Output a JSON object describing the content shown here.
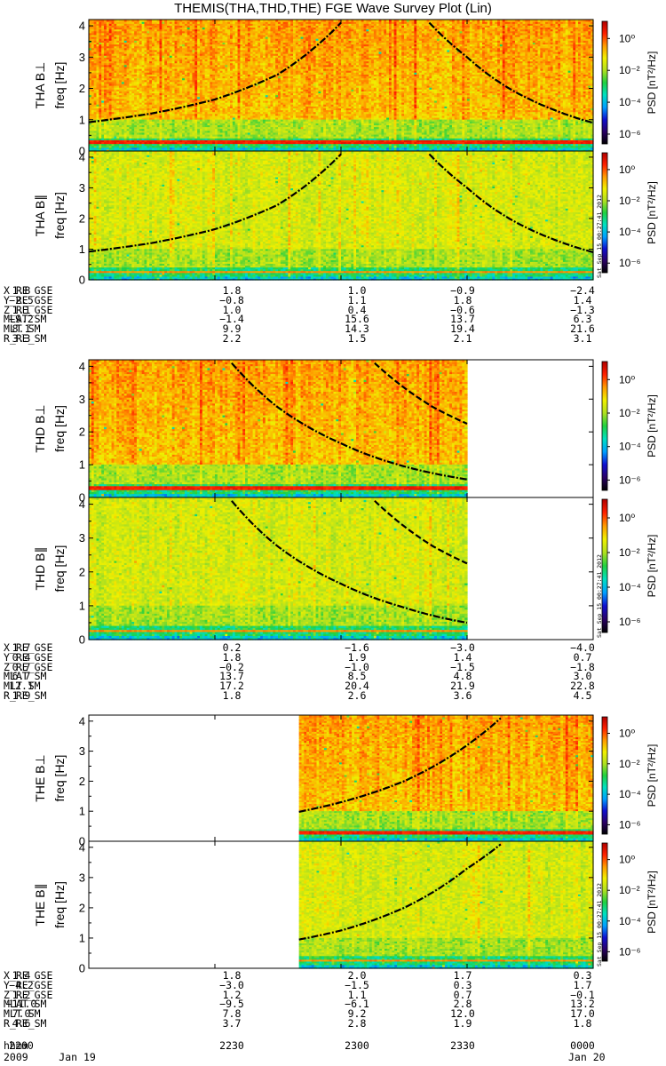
{
  "title": "THEMIS(THA,THD,THE) FGE Wave Survey Plot (Lin)",
  "colorbar": {
    "label": "PSD [nT²/Hz]",
    "tick_labels": [
      "10⁰",
      "10⁻²",
      "10⁻⁴",
      "10⁻⁶"
    ],
    "colors": [
      "#000000",
      "#2a0066",
      "#1010d0",
      "#00a0ff",
      "#00e0c0",
      "#20d040",
      "#b0e020",
      "#f0f000",
      "#ff9a00",
      "#ff2000",
      "#b00000"
    ]
  },
  "timestamp": "Sat Sep 15 00:27:41 2012",
  "time_axis": {
    "label_row": "hhmm",
    "ticks": [
      "2200",
      "2230",
      "2300",
      "2330",
      "0000"
    ],
    "date_left": "2009     Jan 19",
    "date_right": "Jan 20"
  },
  "ephem_labels": [
    "X_RE_GSE",
    "Y_RE_GSE",
    "Z_RE_GSE",
    "MLAT_SM",
    "MLT_SM",
    "R_RE_SM"
  ],
  "probes": [
    {
      "probe": "THA",
      "panels": [
        {
          "ylabel": "THA B⊥",
          "sublabel": "freq [Hz]"
        },
        {
          "ylabel": "THA B∥",
          "sublabel": "freq [Hz]"
        }
      ],
      "ephem": [
        [
          "1.8",
          "1.8",
          "1.0",
          "−0.9",
          "−2.4"
        ],
        [
          "−2.5",
          "−0.8",
          "1.1",
          "1.8",
          "1.4"
        ],
        [
          "1.1",
          "1.0",
          "0.4",
          "−0.6",
          "−1.3"
        ],
        [
          "−9.2",
          "−1.4",
          "15.6",
          "13.7",
          "6.3"
        ],
        [
          "8.1",
          "9.9",
          "14.3",
          "19.4",
          "21.6"
        ],
        [
          "3.3",
          "2.2",
          "1.5",
          "2.1",
          "3.1"
        ]
      ]
    },
    {
      "probe": "THD",
      "panels": [
        {
          "ylabel": "THD B⊥",
          "sublabel": "freq [Hz]"
        },
        {
          "ylabel": "THD B∥",
          "sublabel": "freq [Hz]"
        }
      ],
      "ephem": [
        [
          "1.7",
          "0.2",
          "−1.6",
          "−3.0",
          "−4.0"
        ],
        [
          "0.4",
          "1.8",
          "1.9",
          "1.4",
          "0.7"
        ],
        [
          "0.7",
          "−0.2",
          "−1.0",
          "−1.5",
          "−1.8"
        ],
        [
          "6.7",
          "13.7",
          "8.5",
          "4.8",
          "3.0"
        ],
        [
          "12.1",
          "17.2",
          "20.4",
          "21.9",
          "22.8"
        ],
        [
          "1.9",
          "1.8",
          "2.6",
          "3.6",
          "4.5"
        ]
      ]
    },
    {
      "probe": "THE",
      "panels": [
        {
          "ylabel": "THE B⊥",
          "sublabel": "freq [Hz]"
        },
        {
          "ylabel": "THE B∥",
          "sublabel": "freq [Hz]"
        }
      ],
      "ephem": [
        [
          "1.4",
          "1.8",
          "2.0",
          "1.7",
          "0.3"
        ],
        [
          "−4.2",
          "−3.0",
          "−1.5",
          "0.3",
          "1.7"
        ],
        [
          "1.2",
          "1.2",
          "1.1",
          "0.7",
          "−0.1"
        ],
        [
          "−11.0",
          "−9.5",
          "−6.1",
          "2.8",
          "13.2"
        ],
        [
          "7.0",
          "7.8",
          "9.2",
          "12.0",
          "17.0"
        ],
        [
          "4.6",
          "3.7",
          "2.8",
          "1.9",
          "1.8"
        ]
      ]
    }
  ],
  "chart_data": {
    "type": "heatmap",
    "title": "THEMIS(THA,THD,THE) FGE Wave Survey Plot (Lin)",
    "x_unit": "time (hhmm UT, 2009 Jan 19 2200 – Jan 20 0000)",
    "ylabel": "freq [Hz]",
    "ylim": [
      0,
      4
    ],
    "y_ticks": [
      0,
      1,
      2,
      3,
      4
    ],
    "colorbar_label": "PSD [nT²/Hz]",
    "colorbar_scale": "log",
    "colorbar_range": [
      1e-07,
      30
    ],
    "panels": [
      {
        "name": "THA B⊥",
        "data_span_min": [
          0,
          120
        ],
        "gyro_lines": [
          {
            "style": "dash-dot",
            "points": [
              [
                0,
                0.92
              ],
              [
                15,
                1.2
              ],
              [
                30,
                1.65
              ],
              [
                45,
                2.45
              ],
              [
                60,
                4.1
              ]
            ]
          },
          {
            "style": "dash-dot",
            "points": [
              [
                81,
                4.1
              ],
              [
                90,
                3.0
              ],
              [
                100,
                2.0
              ],
              [
                110,
                1.35
              ],
              [
                120,
                0.9
              ]
            ]
          }
        ]
      },
      {
        "name": "THA B∥",
        "data_span_min": [
          0,
          120
        ],
        "gyro_lines": [
          {
            "style": "dash-dot",
            "points": [
              [
                0,
                0.92
              ],
              [
                15,
                1.2
              ],
              [
                30,
                1.65
              ],
              [
                45,
                2.45
              ],
              [
                60,
                4.1
              ]
            ]
          },
          {
            "style": "dash-dot",
            "points": [
              [
                81,
                4.1
              ],
              [
                90,
                3.0
              ],
              [
                100,
                2.0
              ],
              [
                110,
                1.35
              ],
              [
                120,
                0.9
              ]
            ]
          }
        ]
      },
      {
        "name": "THD B⊥",
        "data_span_min": [
          0,
          90
        ],
        "gyro_lines": [
          {
            "style": "dash-dot",
            "points": [
              [
                34,
                4.1
              ],
              [
                45,
                2.75
              ],
              [
                60,
                1.65
              ],
              [
                75,
                0.95
              ],
              [
                90,
                0.55
              ]
            ]
          },
          {
            "style": "dash",
            "points": [
              [
                68,
                4.1
              ],
              [
                75,
                3.35
              ],
              [
                82,
                2.75
              ],
              [
                90,
                2.25
              ]
            ]
          }
        ]
      },
      {
        "name": "THD B∥",
        "data_span_min": [
          0,
          90
        ],
        "gyro_lines": [
          {
            "style": "dash-dot",
            "points": [
              [
                34,
                4.1
              ],
              [
                45,
                2.75
              ],
              [
                60,
                1.65
              ],
              [
                75,
                0.95
              ],
              [
                90,
                0.5
              ]
            ]
          },
          {
            "style": "dash",
            "points": [
              [
                68,
                4.1
              ],
              [
                75,
                3.35
              ],
              [
                82,
                2.75
              ],
              [
                90,
                2.25
              ]
            ]
          }
        ]
      },
      {
        "name": "THE B⊥",
        "data_span_min": [
          50,
          120
        ],
        "gyro_lines": [
          {
            "style": "dash-dot",
            "points": [
              [
                50,
                0.98
              ],
              [
                60,
                1.3
              ],
              [
                75,
                2.0
              ],
              [
                90,
                3.2
              ],
              [
                98,
                4.1
              ]
            ]
          }
        ]
      },
      {
        "name": "THE B∥",
        "data_span_min": [
          50,
          120
        ],
        "gyro_lines": [
          {
            "style": "dash-dot",
            "points": [
              [
                50,
                0.95
              ],
              [
                60,
                1.25
              ],
              [
                75,
                2.0
              ],
              [
                90,
                3.3
              ],
              [
                98,
                4.1
              ]
            ]
          }
        ]
      }
    ]
  }
}
